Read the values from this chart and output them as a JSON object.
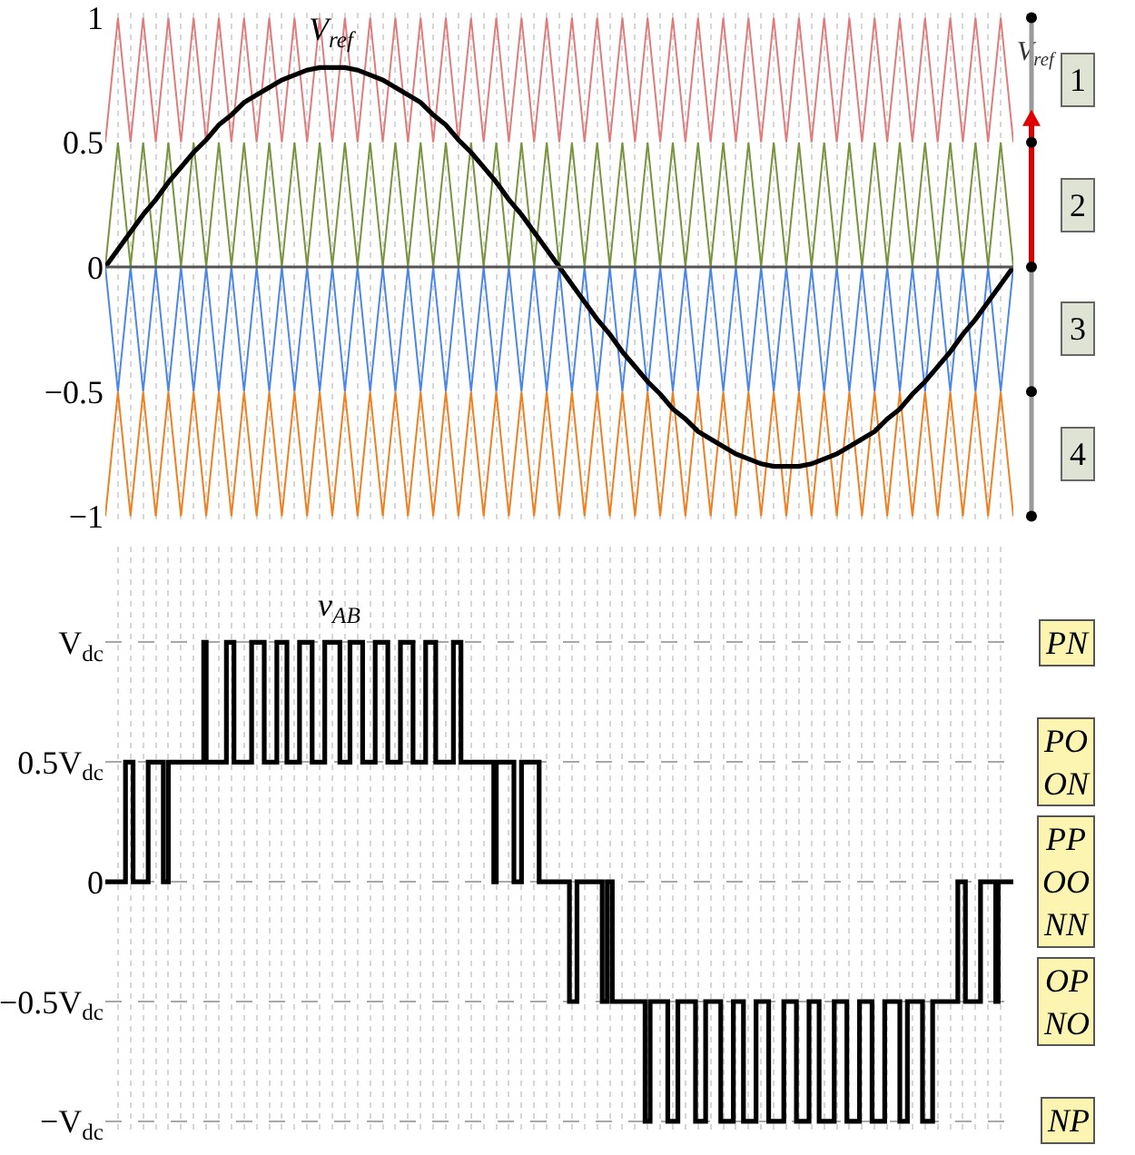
{
  "chart_data": [
    {
      "type": "line",
      "legend": false,
      "grid": "x",
      "tick_labels": "y",
      "marker": "none",
      "categories": [
        null,
        null,
        null,
        null,
        null,
        null,
        null,
        null,
        null,
        null,
        null,
        null,
        null,
        null,
        null,
        null,
        null,
        null,
        null,
        null,
        null,
        null,
        null,
        null,
        null,
        null,
        null,
        null,
        null,
        null,
        null,
        null,
        null,
        null,
        null,
        null,
        null,
        null,
        null,
        null,
        null,
        null,
        null,
        null,
        null,
        null,
        null,
        null,
        null,
        null,
        null,
        null,
        null,
        null,
        null,
        null,
        null,
        null,
        null,
        null,
        null,
        null,
        null,
        null,
        null,
        null,
        null,
        null,
        null,
        null,
        null,
        null,
        null
      ],
      "ylim": [
        -1.02,
        1.02
      ],
      "yticks": [
        {
          "value": -1,
          "label": "−1"
        },
        {
          "value": -0.5,
          "label": "−0.5"
        },
        0,
        0.5,
        1
      ],
      "ref_lines": [
        {
          "axis": "y",
          "value": 0,
          "label": null,
          "color": "#555555"
        }
      ],
      "annotations": [
        "V$_{ref}$",
        "1",
        "2",
        "3",
        "4"
      ],
      "series": [
        {
          "color": "#e07b7b",
          "values": [
            0.5,
            1,
            0.5,
            1,
            0.5,
            1,
            0.5,
            1,
            0.5,
            1,
            0.5,
            1,
            0.5,
            1,
            0.5,
            1,
            0.5,
            1,
            0.5,
            1,
            0.5,
            1,
            0.5,
            1,
            0.5,
            1,
            0.5,
            1,
            0.5,
            1,
            0.5,
            1,
            0.5,
            1,
            0.5,
            1,
            0.5,
            1,
            0.5,
            1,
            0.5,
            1,
            0.5,
            1,
            0.5,
            1,
            0.5,
            1,
            0.5,
            1,
            0.5,
            1,
            0.5,
            1,
            0.5,
            1,
            0.5,
            1,
            0.5,
            1,
            0.5,
            1,
            0.5,
            1,
            0.5,
            1,
            0.5,
            1,
            0.5,
            1,
            0.5,
            1,
            0.5
          ]
        },
        {
          "color": "#77933c",
          "values": [
            0,
            0.5,
            0,
            0.5,
            0,
            0.5,
            0,
            0.5,
            0,
            0.5,
            0,
            0.5,
            0,
            0.5,
            0,
            0.5,
            0,
            0.5,
            0,
            0.5,
            0,
            0.5,
            0,
            0.5,
            0,
            0.5,
            0,
            0.5,
            0,
            0.5,
            0,
            0.5,
            0,
            0.5,
            0,
            0.5,
            0,
            0.5,
            0,
            0.5,
            0,
            0.5,
            0,
            0.5,
            0,
            0.5,
            0,
            0.5,
            0,
            0.5,
            0,
            0.5,
            0,
            0.5,
            0,
            0.5,
            0,
            0.5,
            0,
            0.5,
            0,
            0.5,
            0,
            0.5,
            0,
            0.5,
            0,
            0.5,
            0,
            0.5,
            0,
            0.5,
            0
          ]
        },
        {
          "color": "#4a86e8",
          "values": [
            0,
            -0.5,
            0,
            -0.5,
            0,
            -0.5,
            0,
            -0.5,
            0,
            -0.5,
            0,
            -0.5,
            0,
            -0.5,
            0,
            -0.5,
            0,
            -0.5,
            0,
            -0.5,
            0,
            -0.5,
            0,
            -0.5,
            0,
            -0.5,
            0,
            -0.5,
            0,
            -0.5,
            0,
            -0.5,
            0,
            -0.5,
            0,
            -0.5,
            0,
            -0.5,
            0,
            -0.5,
            0,
            -0.5,
            0,
            -0.5,
            0,
            -0.5,
            0,
            -0.5,
            0,
            -0.5,
            0,
            -0.5,
            0,
            -0.5,
            0,
            -0.5,
            0,
            -0.5,
            0,
            -0.5,
            0,
            -0.5,
            0,
            -0.5,
            0,
            -0.5,
            0,
            -0.5,
            0,
            -0.5,
            0,
            -0.5,
            0
          ]
        },
        {
          "color": "#f07f1f",
          "values": [
            -1,
            -0.5,
            -1,
            -0.5,
            -1,
            -0.5,
            -1,
            -0.5,
            -1,
            -0.5,
            -1,
            -0.5,
            -1,
            -0.5,
            -1,
            -0.5,
            -1,
            -0.5,
            -1,
            -0.5,
            -1,
            -0.5,
            -1,
            -0.5,
            -1,
            -0.5,
            -1,
            -0.5,
            -1,
            -0.5,
            -1,
            -0.5,
            -1,
            -0.5,
            -1,
            -0.5,
            -1,
            -0.5,
            -1,
            -0.5,
            -1,
            -0.5,
            -1,
            -0.5,
            -1,
            -0.5,
            -1,
            -0.5,
            -1,
            -0.5,
            -1,
            -0.5,
            -1,
            -0.5,
            -1,
            -0.5,
            -1,
            -0.5,
            -1,
            -0.5,
            -1,
            -0.5,
            -1,
            -0.5,
            -1,
            -0.5,
            -1,
            -0.5,
            -1,
            -0.5,
            -1,
            -0.5,
            -1
          ]
        },
        {
          "name": "V$_{ref}$",
          "color": "#000000",
          "values": [
            0,
            0.07,
            0.14,
            0.21,
            0.27,
            0.34,
            0.4,
            0.46,
            0.51,
            0.57,
            0.61,
            0.66,
            0.69,
            0.72,
            0.75,
            0.77,
            0.79,
            0.8,
            0.8,
            0.8,
            0.79,
            0.77,
            0.75,
            0.72,
            0.69,
            0.66,
            0.61,
            0.57,
            0.51,
            0.46,
            0.4,
            0.34,
            0.27,
            0.21,
            0.14,
            0.07,
            0,
            -0.07,
            -0.14,
            -0.21,
            -0.27,
            -0.34,
            -0.4,
            -0.46,
            -0.51,
            -0.57,
            -0.61,
            -0.66,
            -0.69,
            -0.72,
            -0.75,
            -0.77,
            -0.79,
            -0.8,
            -0.8,
            -0.8,
            -0.79,
            -0.77,
            -0.75,
            -0.72,
            -0.69,
            -0.66,
            -0.61,
            -0.57,
            -0.51,
            -0.46,
            -0.4,
            -0.34,
            -0.27,
            -0.21,
            -0.14,
            -0.07,
            0
          ]
        }
      ]
    },
    {
      "type": "step",
      "legend": false,
      "grid": true,
      "tick_labels": "y",
      "marker": "none",
      "categories": [
        null,
        null,
        null,
        null,
        null,
        null,
        null,
        null,
        null,
        null,
        null,
        null,
        null,
        null,
        null,
        null,
        null,
        null,
        null,
        null,
        null,
        null,
        null,
        null,
        null,
        null,
        null,
        null,
        null,
        null,
        null,
        null,
        null,
        null,
        null,
        null,
        null,
        null,
        null,
        null,
        null,
        null,
        null,
        null,
        null,
        null,
        null,
        null,
        null,
        null,
        null,
        null,
        null,
        null,
        null,
        null,
        null,
        null,
        null,
        null,
        null,
        null,
        null,
        null,
        null,
        null,
        null,
        null,
        null,
        null,
        null,
        null,
        null,
        null,
        null,
        null,
        null,
        null,
        null,
        null,
        null,
        null,
        null,
        null,
        null,
        null,
        null,
        null,
        null,
        null,
        null,
        null,
        null,
        null,
        null,
        null,
        null,
        null,
        null,
        null,
        null,
        null,
        null,
        null,
        null,
        null,
        null,
        null,
        null,
        null,
        null,
        null,
        null,
        null,
        null,
        null,
        null,
        null,
        null,
        null,
        null,
        null,
        null,
        null,
        null,
        null,
        null,
        null,
        null,
        null,
        null,
        null,
        null,
        null,
        null,
        null,
        null,
        null,
        null,
        null,
        null,
        null,
        null,
        null,
        null,
        null,
        null,
        null,
        null,
        null,
        null,
        null,
        null,
        null,
        null,
        null,
        null,
        null,
        null,
        null,
        null,
        null,
        null,
        null,
        null,
        null,
        null,
        null,
        null,
        null,
        null,
        null,
        null,
        null,
        null,
        null,
        null,
        null,
        null,
        null,
        null,
        null,
        null,
        null,
        null,
        null,
        null,
        null,
        null,
        null,
        null,
        null,
        null,
        null,
        null,
        null,
        null,
        null,
        null,
        null,
        null,
        null,
        null,
        null,
        null,
        null,
        null,
        null,
        null,
        null,
        null,
        null,
        null,
        null,
        null,
        null,
        null,
        null,
        null,
        null,
        null,
        null,
        null,
        null,
        null,
        null,
        null,
        null,
        null,
        null,
        null,
        null,
        null,
        null,
        null,
        null,
        null,
        null,
        null,
        null,
        null,
        null,
        null,
        null,
        null,
        null,
        null,
        null,
        null,
        null,
        null,
        null,
        null,
        null,
        null,
        null,
        null,
        null,
        null,
        null,
        null,
        null,
        null,
        null,
        null,
        null,
        null,
        null,
        null,
        null,
        null,
        null,
        null,
        null,
        null,
        null,
        null,
        null,
        null,
        null,
        null,
        null,
        null,
        null,
        null,
        null,
        null,
        null,
        null,
        null,
        null,
        null,
        null,
        null,
        null,
        null,
        null,
        null,
        null,
        null,
        null,
        null,
        null,
        null,
        null,
        null,
        null,
        null,
        null,
        null,
        null,
        null,
        null,
        null,
        null,
        null,
        null,
        null,
        null,
        null,
        null,
        null,
        null,
        null,
        null,
        null,
        null,
        null,
        null,
        null,
        null,
        null,
        null,
        null,
        null,
        null,
        null,
        null,
        null,
        null,
        null,
        null,
        null,
        null,
        null,
        null,
        null,
        null,
        null,
        null,
        null,
        null,
        null,
        null,
        null,
        null,
        null,
        null,
        null,
        null,
        null
      ],
      "ylim": [
        -1.05,
        1.4
      ],
      "yticks": [
        {
          "value": -1,
          "label": "−V$_{dc}$"
        },
        {
          "value": -0.5,
          "label": "−0.5V$_{dc}$"
        },
        0,
        {
          "value": 0.5,
          "label": "0.5V$_{dc}$"
        },
        {
          "value": 1,
          "label": "V$_{dc}$"
        }
      ],
      "annotations": [
        "PN",
        "PO\nON",
        "PP\nOO\nNN",
        "OP\nNO",
        "NP"
      ],
      "series": [
        {
          "name": "v$_{AB}$",
          "color": "#000000",
          "values": [
            0,
            0,
            0,
            0,
            0,
            0,
            0,
            0,
            0.5,
            0.5,
            0.5,
            0,
            0,
            0,
            0,
            0,
            0,
            0.5,
            0.5,
            0.5,
            0.5,
            0.5,
            0.5,
            0,
            0,
            0.5,
            0.5,
            0.5,
            0.5,
            0.5,
            0.5,
            0.5,
            0.5,
            0.5,
            0.5,
            0.5,
            0.5,
            0.5,
            0.5,
            1,
            0.5,
            0.5,
            0.5,
            0.5,
            0.5,
            0.5,
            0.5,
            0.5,
            1,
            1,
            1,
            0.5,
            0.5,
            0.5,
            0.5,
            0.5,
            0.5,
            0.5,
            1,
            1,
            1,
            1,
            1,
            0.5,
            0.5,
            0.5,
            0.5,
            0.5,
            1,
            1,
            1,
            1,
            0.5,
            0.5,
            0.5,
            0.5,
            0.5,
            1,
            1,
            1,
            1,
            1,
            0.5,
            0.5,
            0.5,
            0.5,
            0.5,
            1,
            1,
            1,
            1,
            1,
            1,
            0.5,
            0.5,
            0.5,
            0.5,
            1,
            1,
            1,
            1,
            1,
            0.5,
            0.5,
            0.5,
            0.5,
            0.5,
            1,
            1,
            1,
            1,
            1,
            0.5,
            0.5,
            0.5,
            0.5,
            0.5,
            1,
            1,
            1,
            1,
            1,
            0.5,
            0.5,
            0.5,
            0.5,
            0.5,
            1,
            1,
            1,
            1,
            0.5,
            0.5,
            0.5,
            0.5,
            0.5,
            0.5,
            0.5,
            1,
            1,
            1,
            0.5,
            0.5,
            0.5,
            0.5,
            0.5,
            0.5,
            0.5,
            0.5,
            0.5,
            0.5,
            0.5,
            0.5,
            0.5,
            0,
            0.5,
            0.5,
            0.5,
            0.5,
            0.5,
            0.5,
            0.5,
            0,
            0,
            0,
            0.5,
            0.5,
            0.5,
            0.5,
            0.5,
            0.5,
            0.5,
            0,
            0,
            0,
            0,
            0,
            0,
            0,
            0,
            0,
            0,
            0,
            0,
            -0.5,
            -0.5,
            -0.5,
            0,
            0,
            0,
            0,
            0,
            0,
            0,
            0,
            0,
            0,
            -0.5,
            -0.5,
            0,
            0,
            -0.5,
            -0.5,
            -0.5,
            -0.5,
            -0.5,
            -0.5,
            -0.5,
            -0.5,
            -0.5,
            -0.5,
            -0.5,
            -0.5,
            -0.5,
            -1,
            -1,
            -0.5,
            -0.5,
            -0.5,
            -0.5,
            -0.5,
            -0.5,
            -0.5,
            -1,
            -1,
            -1,
            -1,
            -0.5,
            -0.5,
            -0.5,
            -0.5,
            -0.5,
            -0.5,
            -0.5,
            -1,
            -1,
            -1,
            -1,
            -0.5,
            -0.5,
            -0.5,
            -0.5,
            -0.5,
            -0.5,
            -1,
            -1,
            -1,
            -1,
            -1,
            -0.5,
            -0.5,
            -0.5,
            -0.5,
            -1,
            -1,
            -1,
            -1,
            -1,
            -0.5,
            -0.5,
            -0.5,
            -0.5,
            -0.5,
            -1,
            -1,
            -1,
            -1,
            -1,
            -1,
            -0.5,
            -0.5,
            -0.5,
            -0.5,
            -0.5,
            -1,
            -1,
            -1,
            -1,
            -1,
            -0.5,
            -0.5,
            -0.5,
            -0.5,
            -1,
            -1,
            -1,
            -1,
            -1,
            -1,
            -0.5,
            -0.5,
            -0.5,
            -0.5,
            -0.5,
            -1,
            -1,
            -1,
            -1,
            -1,
            -0.5,
            -0.5,
            -0.5,
            -0.5,
            -0.5,
            -1,
            -1,
            -1,
            -1,
            -1,
            -0.5,
            -0.5,
            -0.5,
            -0.5,
            -0.5,
            -0.5,
            -1,
            -1,
            -1,
            -0.5,
            -0.5,
            -0.5,
            -0.5,
            -0.5,
            -0.5,
            -1,
            -1,
            -1,
            -1,
            -0.5,
            -0.5,
            -0.5,
            -0.5,
            -0.5,
            -0.5,
            -0.5,
            -0.5,
            -0.5,
            -0.5,
            0,
            0,
            0,
            -0.5,
            -0.5,
            -0.5,
            -0.5,
            -0.5,
            -0.5,
            0,
            0,
            0,
            0,
            0,
            0,
            -0.5,
            0,
            0,
            0,
            0,
            0,
            0,
            0
          ]
        }
      ]
    }
  ]
}
